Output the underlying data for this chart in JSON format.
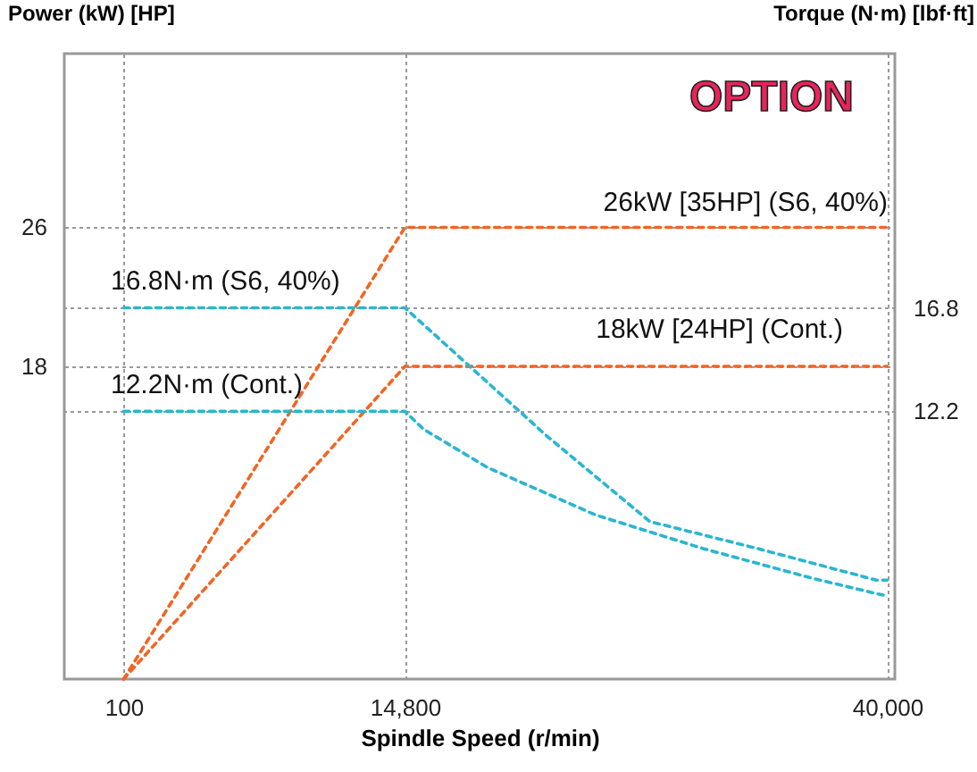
{
  "chart_data": {
    "type": "line",
    "xlabel": "Spindle Speed (r/min)",
    "ylabel": "Power (kW) [HP]",
    "y2label": "Torque (N·m) [lbf·ft]",
    "xlim": [
      -3000,
      40400
    ],
    "xticks": [
      100,
      {
        "value": 14800,
        "label": "14,800"
      },
      {
        "value": 40000,
        "label": "40,000"
      }
    ],
    "ylim": [
      0,
      36
    ],
    "yticks": [
      18,
      26
    ],
    "y2lim": [
      0.3,
      28.1
    ],
    "y2ticks": [
      12.2,
      16.8
    ],
    "grid": true,
    "line_style": "dashed",
    "marker": "none",
    "series": [
      {
        "color": "#f26522",
        "x": [
          100,
          14800,
          40000
        ],
        "values": [
          0,
          26,
          26
        ]
      },
      {
        "color": "#f26522",
        "x": [
          100,
          14800,
          40000
        ],
        "values": [
          0,
          18,
          18
        ]
      },
      {
        "color": "#29b6d0",
        "axis": "y2",
        "x": [
          100,
          14800,
          22220,
          27600,
          33230,
          39430,
          40000
        ],
        "values": [
          16.8,
          16.8,
          11.1,
          7.3,
          6.1,
          4.7,
          4.7
        ]
      },
      {
        "color": "#29b6d0",
        "axis": "y2",
        "x": [
          100,
          14800,
          15780,
          19120,
          24750,
          30380,
          36000,
          39430,
          40000
        ],
        "values": [
          12.2,
          12.2,
          11.4,
          9.7,
          7.6,
          6.1,
          4.8,
          4.1,
          4.0
        ]
      }
    ],
    "annotations": [
      "OPTION",
      "26kW [35HP] (S6, 40%)",
      "16.8N·m (S6, 40%)",
      "18kW [24HP] (Cont.)",
      "12.2N·m (Cont.)"
    ]
  }
}
